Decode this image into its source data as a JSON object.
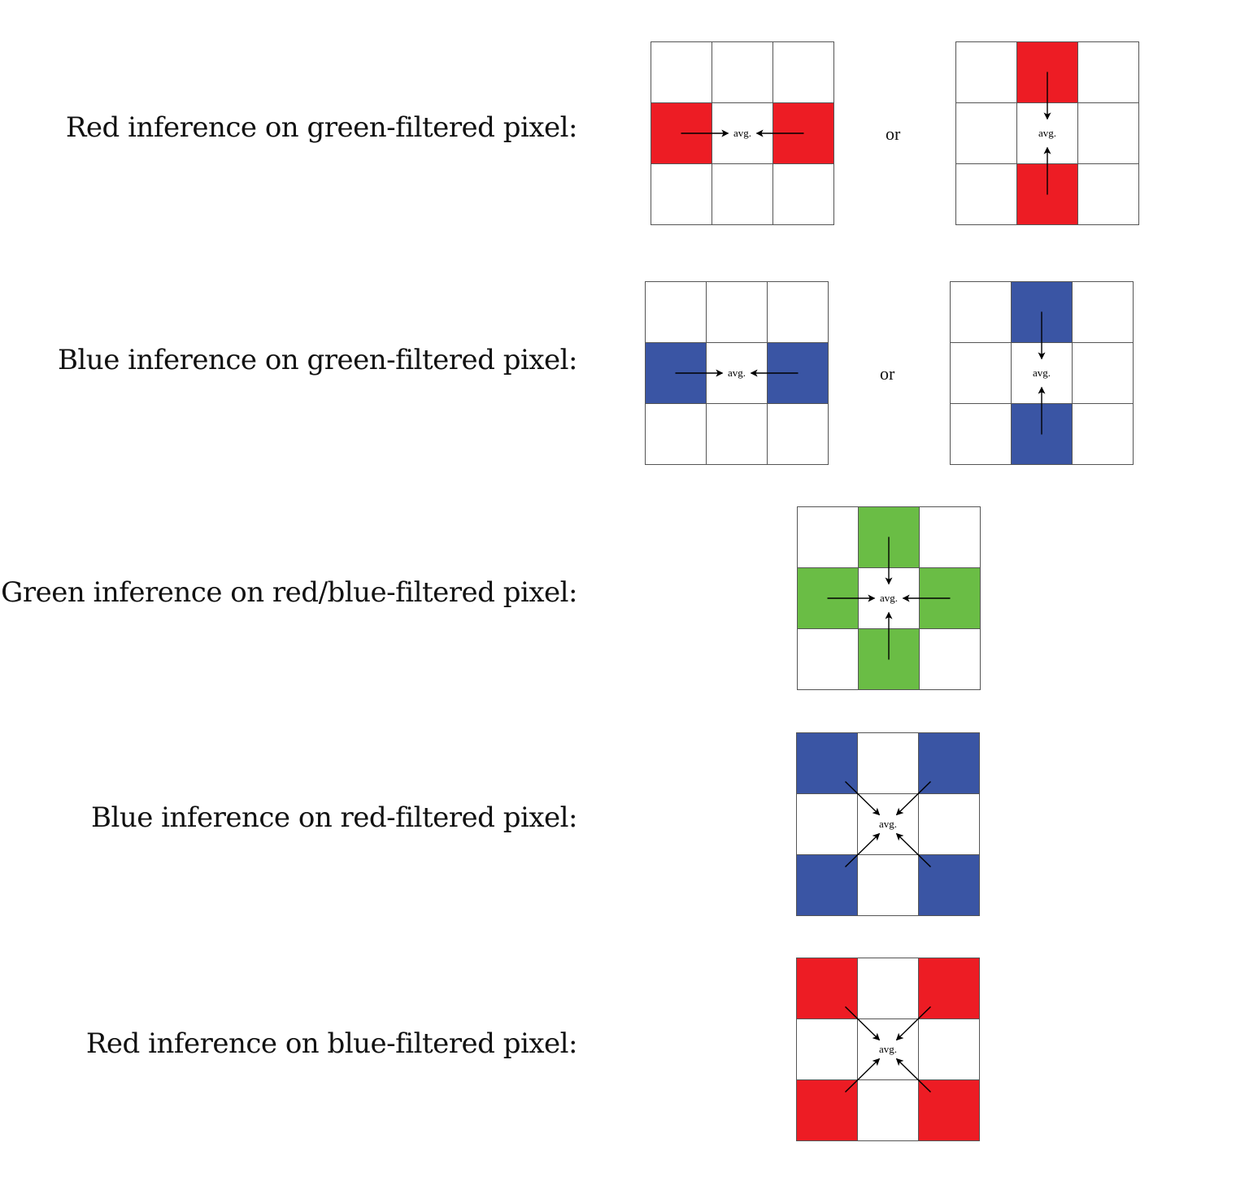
{
  "colors": {
    "red": "#ED1C24",
    "blue": "#3A55A4",
    "green": "#6ABD45",
    "white": "#FFFFFF",
    "grid_line": "#555555",
    "arrow": "#000000"
  },
  "connector_word": "or",
  "avg_label": "avg.",
  "rows": [
    {
      "label": "Red inference on green-filtered pixel:",
      "grids": [
        {
          "fill_color": "red",
          "filled_cells": [
            [
              1,
              0
            ],
            [
              1,
              2
            ]
          ],
          "arrows_from": [
            "left",
            "right"
          ]
        },
        {
          "fill_color": "red",
          "filled_cells": [
            [
              0,
              1
            ],
            [
              2,
              1
            ]
          ],
          "arrows_from": [
            "top",
            "bottom"
          ]
        }
      ]
    },
    {
      "label": "Blue inference on green-filtered pixel:",
      "grids": [
        {
          "fill_color": "blue",
          "filled_cells": [
            [
              1,
              0
            ],
            [
              1,
              2
            ]
          ],
          "arrows_from": [
            "left",
            "right"
          ]
        },
        {
          "fill_color": "blue",
          "filled_cells": [
            [
              0,
              1
            ],
            [
              2,
              1
            ]
          ],
          "arrows_from": [
            "top",
            "bottom"
          ]
        }
      ]
    },
    {
      "label": "Green inference on red/blue-filtered pixel:",
      "grids": [
        {
          "fill_color": "green",
          "filled_cells": [
            [
              0,
              1
            ],
            [
              1,
              0
            ],
            [
              1,
              2
            ],
            [
              2,
              1
            ]
          ],
          "arrows_from": [
            "top",
            "left",
            "right",
            "bottom"
          ]
        }
      ]
    },
    {
      "label": "Blue inference on red-filtered pixel:",
      "grids": [
        {
          "fill_color": "blue",
          "filled_cells": [
            [
              0,
              0
            ],
            [
              0,
              2
            ],
            [
              2,
              0
            ],
            [
              2,
              2
            ]
          ],
          "arrows_from": [
            "top-left",
            "top-right",
            "bottom-left",
            "bottom-right"
          ]
        }
      ]
    },
    {
      "label": "Red inference on blue-filtered pixel:",
      "grids": [
        {
          "fill_color": "red",
          "filled_cells": [
            [
              0,
              0
            ],
            [
              0,
              2
            ],
            [
              2,
              0
            ],
            [
              2,
              2
            ]
          ],
          "arrows_from": [
            "top-left",
            "top-right",
            "bottom-left",
            "bottom-right"
          ]
        }
      ]
    }
  ]
}
